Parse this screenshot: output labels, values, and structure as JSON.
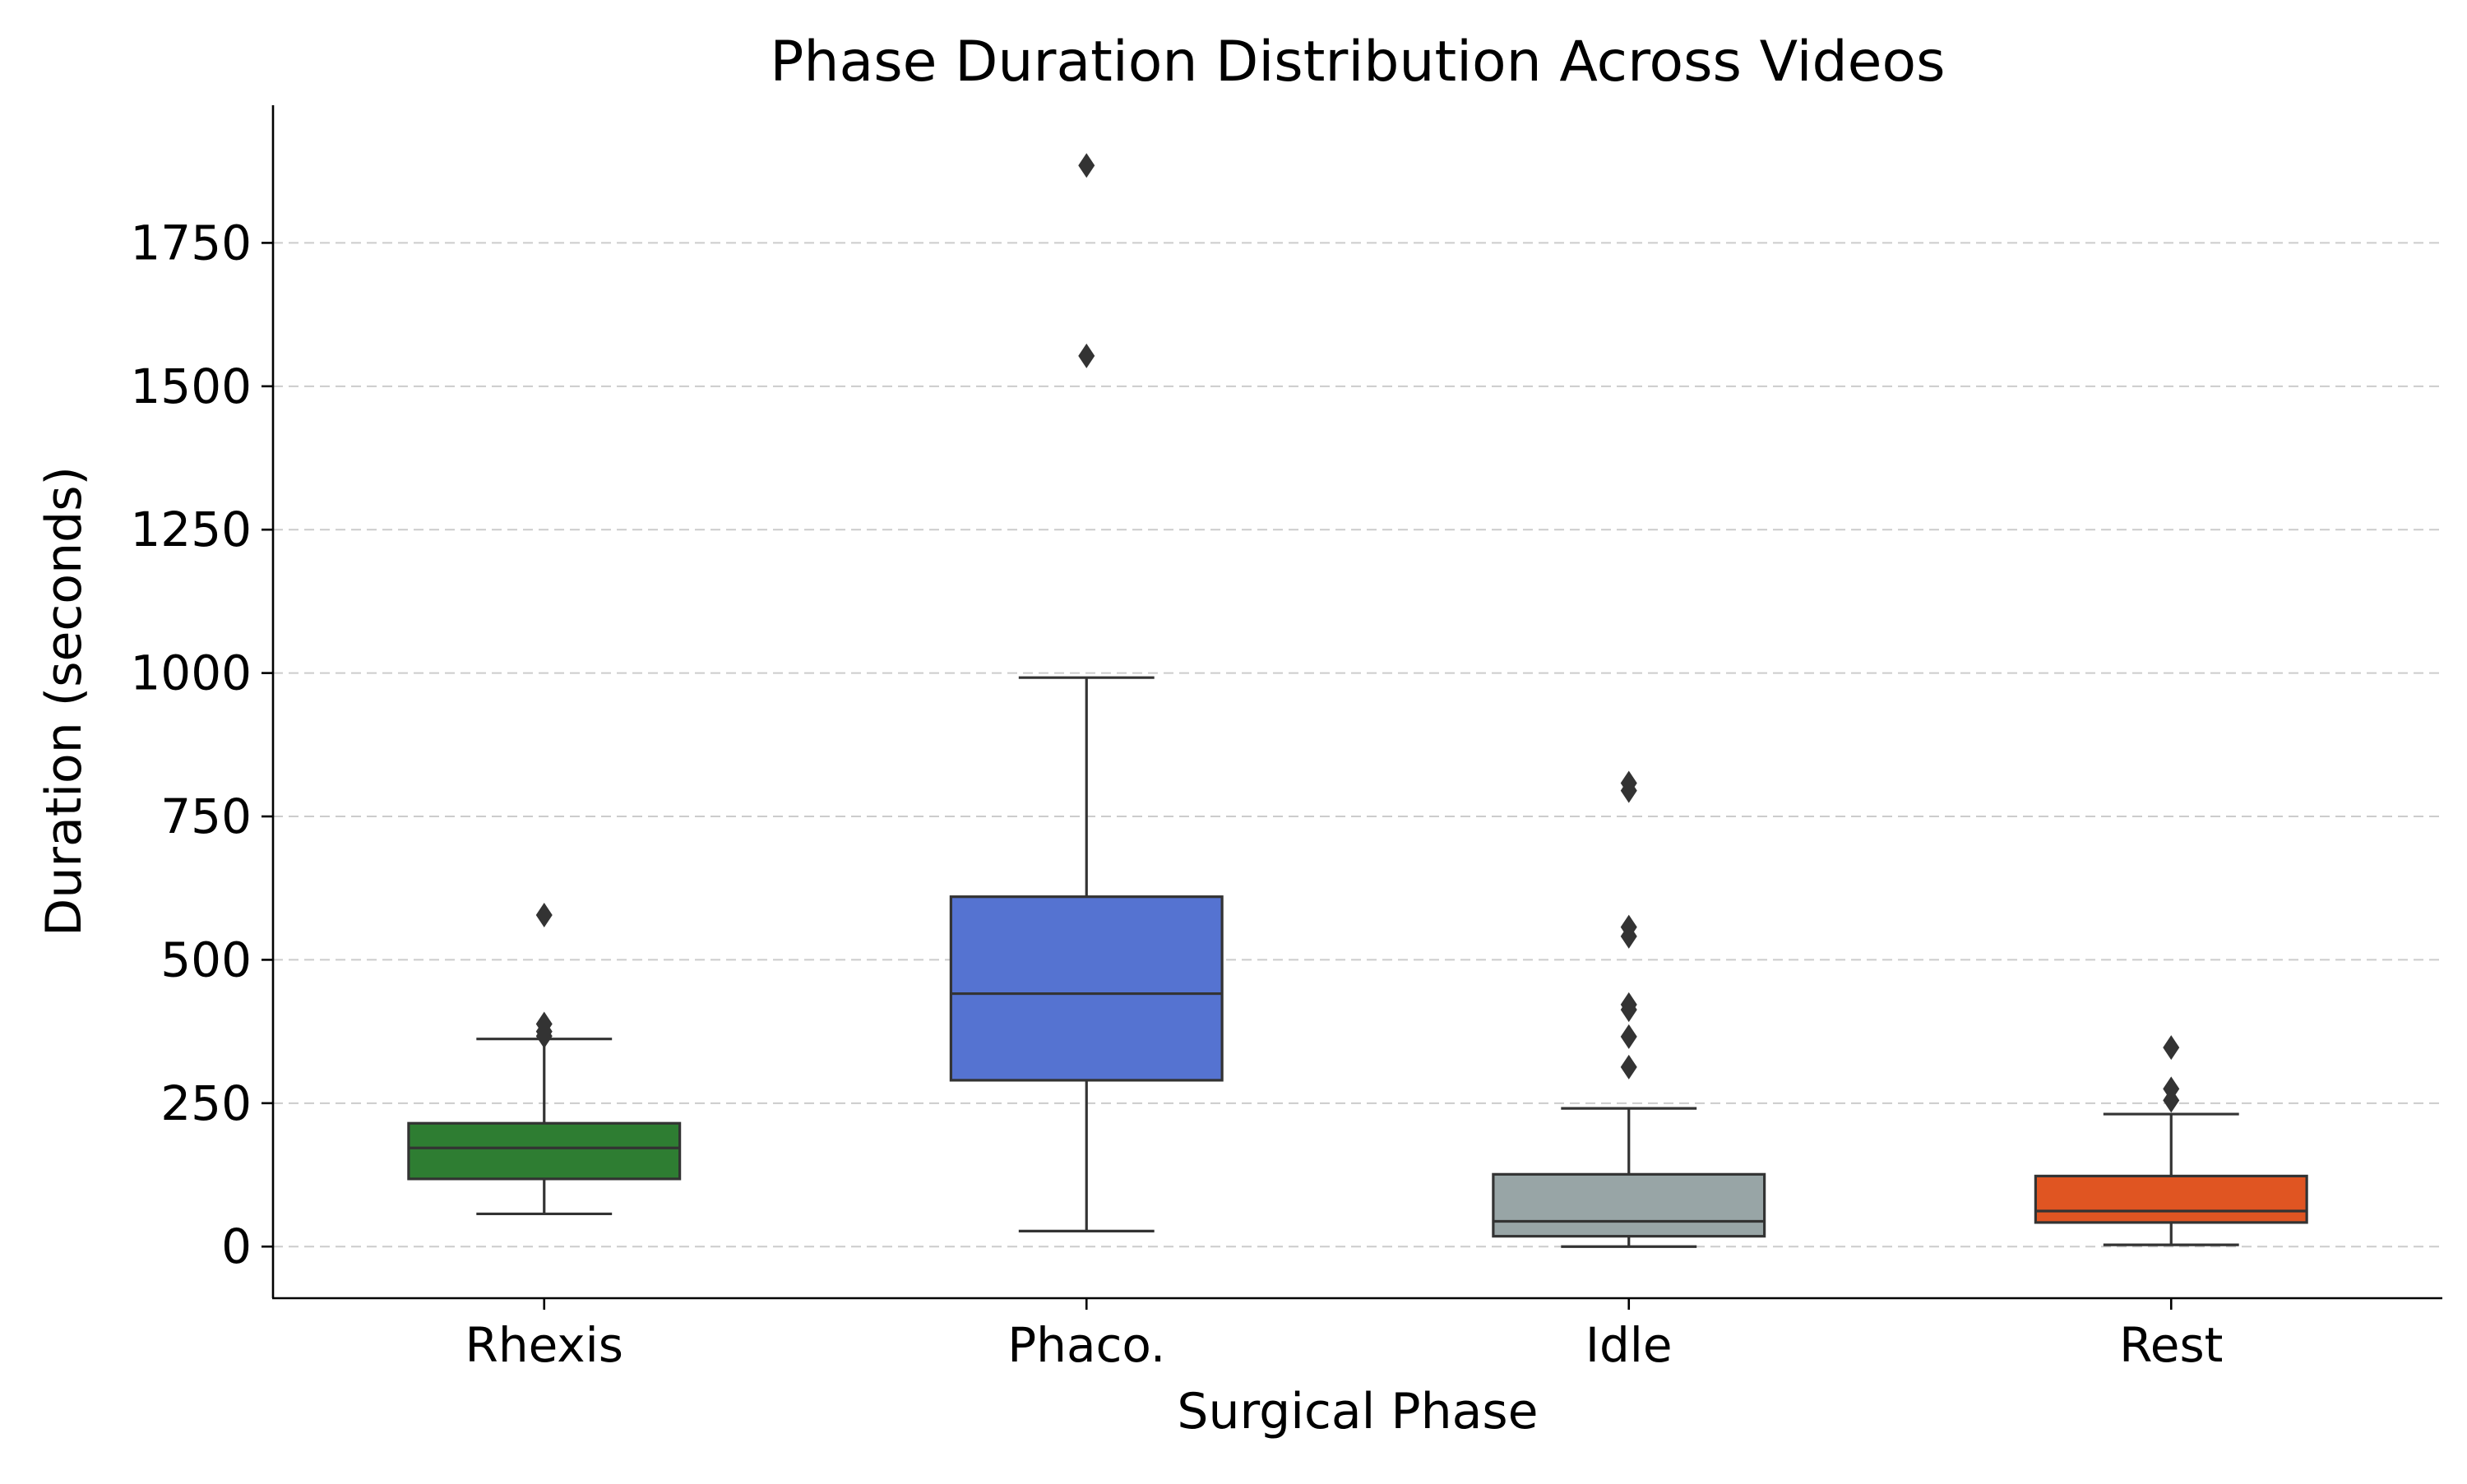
{
  "chart_data": {
    "type": "box",
    "title": "Phase Duration Distribution Across Videos",
    "xlabel": "Surgical Phase",
    "ylabel": "Duration (seconds)",
    "ylim": [
      -90,
      1990
    ],
    "yticks": [
      0,
      250,
      500,
      750,
      1000,
      1250,
      1500,
      1750
    ],
    "grid": "y-dashed",
    "categories": [
      "Rhexis",
      "Phaco.",
      "Idle",
      "Rest"
    ],
    "colors": [
      "#2e7d32",
      "#5573d1",
      "#98a5a6",
      "#e05522"
    ],
    "boxes": [
      {
        "category": "Rhexis",
        "whisker_low": 57,
        "q1": 118,
        "median": 172,
        "q3": 215,
        "whisker_high": 362,
        "outliers": [
          367,
          375,
          388,
          578
        ]
      },
      {
        "category": "Phaco.",
        "whisker_low": 27,
        "q1": 290,
        "median": 441,
        "q3": 610,
        "whisker_high": 992,
        "outliers": [
          1553,
          1885
        ]
      },
      {
        "category": "Idle",
        "whisker_low": 0,
        "q1": 18,
        "median": 44,
        "q3": 126,
        "whisker_high": 241,
        "outliers": [
          313,
          366,
          413,
          422,
          541,
          557,
          795,
          808
        ]
      },
      {
        "category": "Rest",
        "whisker_low": 3,
        "q1": 42,
        "median": 62,
        "q3": 123,
        "whisker_high": 231,
        "outliers": [
          255,
          275,
          347
        ]
      }
    ]
  }
}
